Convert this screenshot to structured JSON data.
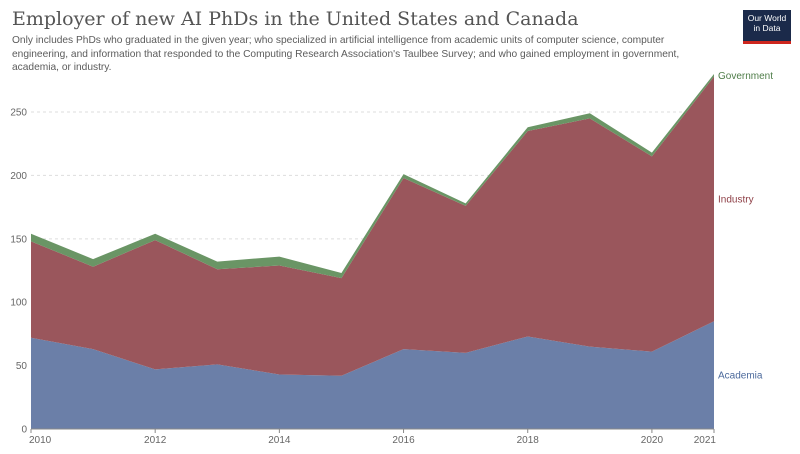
{
  "header": {
    "title": "Employer of new AI PhDs in the United States and Canada",
    "subtitle": "Only includes PhDs who graduated in the given year; who specialized in artificial intelligence from academic units of computer science, computer engineering, and information that responded to the Computing Research Association's Taulbee Survey; and who gained employment in government, academia, or industry."
  },
  "logo": {
    "line1": "Our World",
    "line2": "in Data"
  },
  "chart_data": {
    "type": "area",
    "stacked": true,
    "x": [
      2010,
      2011,
      2012,
      2013,
      2014,
      2015,
      2016,
      2017,
      2018,
      2019,
      2020,
      2021
    ],
    "series": [
      {
        "name": "Academia",
        "color": "#6b7fa8",
        "values": [
          72,
          63,
          47,
          51,
          43,
          42,
          63,
          60,
          73,
          65,
          61,
          85
        ]
      },
      {
        "name": "Industry",
        "color": "#9a565c",
        "values": [
          76,
          65,
          102,
          75,
          86,
          77,
          135,
          116,
          162,
          180,
          154,
          193
        ]
      },
      {
        "name": "Government",
        "color": "#6a9565",
        "values": [
          6,
          6,
          5,
          6,
          7,
          4,
          3,
          2,
          3,
          4,
          3,
          2
        ]
      }
    ],
    "xticks": [
      "2010",
      "2012",
      "2014",
      "2016",
      "2018",
      "2020",
      "2021"
    ],
    "yticks": [
      "0",
      "50",
      "100",
      "150",
      "200",
      "250"
    ],
    "ylim": [
      0,
      280
    ],
    "grid": "horizontal dashed",
    "legend": "right, inline labels"
  }
}
